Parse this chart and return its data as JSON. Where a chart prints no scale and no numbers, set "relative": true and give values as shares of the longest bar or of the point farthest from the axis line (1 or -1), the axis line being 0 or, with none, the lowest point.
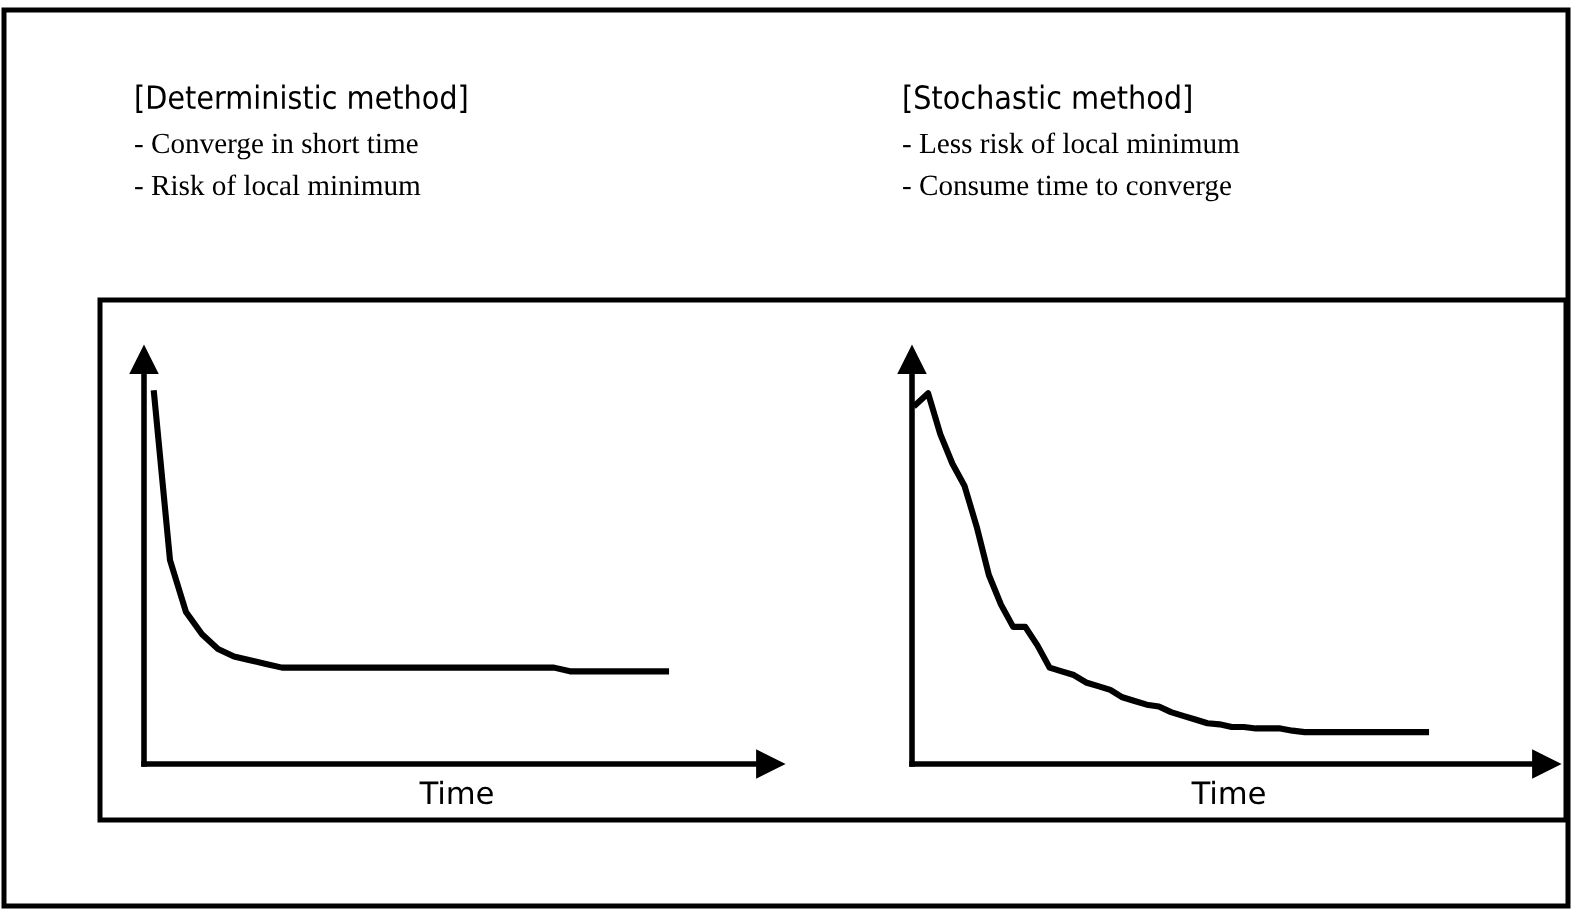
{
  "chart_data": [
    {
      "type": "line",
      "relative": true,
      "title": "[Deterministic method]",
      "annotations": [
        "- Converge in short time",
        "- Risk of local minimum"
      ],
      "xlabel": "Time",
      "tick_labels": false,
      "categories": [
        null,
        null,
        null,
        null,
        null,
        null,
        null,
        null,
        null,
        null,
        null,
        null,
        null,
        null,
        null,
        null,
        null,
        null,
        null,
        null,
        null,
        null,
        null,
        null,
        null,
        null,
        null,
        null,
        null,
        null,
        null,
        null,
        null
      ],
      "series": [
        {
          "color": "#000000",
          "values": [
            1,
            0.55,
            0.41,
            0.35,
            0.31,
            0.29,
            0.28,
            0.27,
            0.26,
            0.26,
            0.26,
            0.26,
            0.26,
            0.26,
            0.26,
            0.26,
            0.26,
            0.26,
            0.26,
            0.26,
            0.26,
            0.26,
            0.26,
            0.26,
            0.26,
            0.26,
            0.25,
            0.25,
            0.25,
            0.25,
            0.25,
            0.25,
            0.25
          ]
        }
      ]
    },
    {
      "type": "line",
      "relative": true,
      "title": "[Stochastic method]",
      "annotations": [
        "- Less risk of local minimum",
        "- Consume time to converge"
      ],
      "xlabel": "Time",
      "tick_labels": false,
      "categories": [
        null,
        null,
        null,
        null,
        null,
        null,
        null,
        null,
        null,
        null,
        null,
        null,
        null,
        null,
        null,
        null,
        null,
        null,
        null,
        null,
        null,
        null,
        null,
        null,
        null,
        null,
        null,
        null,
        null,
        null,
        null,
        null,
        null,
        null,
        null,
        null,
        null,
        null,
        null,
        null,
        null,
        null,
        null
      ],
      "series": [
        {
          "color": "#000000",
          "values": [
            0.97,
            1,
            0.89,
            0.81,
            0.75,
            0.64,
            0.51,
            0.43,
            0.37,
            0.37,
            0.32,
            0.26,
            0.25,
            0.24,
            0.22,
            0.21,
            0.2,
            0.18,
            0.17,
            0.16,
            0.155,
            0.14,
            0.13,
            0.12,
            0.11,
            0.107,
            0.1,
            0.1,
            0.096,
            0.096,
            0.096,
            0.09,
            0.086,
            0.086,
            0.086,
            0.086,
            0.086,
            0.086,
            0.086,
            0.086,
            0.086,
            0.086,
            0.086
          ]
        }
      ]
    }
  ]
}
